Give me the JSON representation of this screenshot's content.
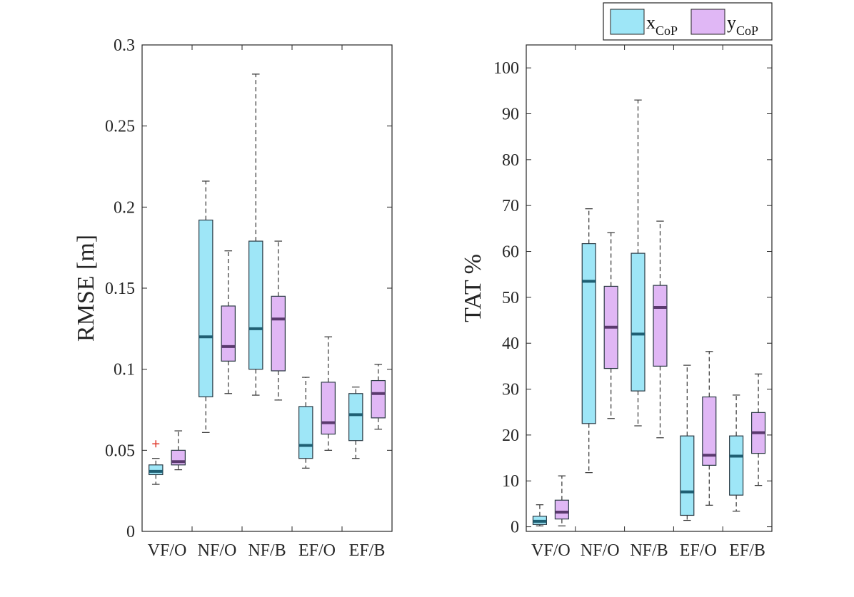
{
  "legend": {
    "entries": [
      {
        "main": "x",
        "sub": "CoP",
        "color": "#9ee6f7",
        "median_color": "#1f5f73"
      },
      {
        "main": "y",
        "sub": "CoP",
        "color": "#e0b7f5",
        "median_color": "#5a3a6e"
      }
    ],
    "placement": "top-right"
  },
  "chart_data": [
    {
      "type": "box",
      "ylabel": "RMSE [m]",
      "xlabel": "",
      "categories": [
        "VF/O",
        "NF/O",
        "NF/B",
        "EF/O",
        "EF/B"
      ],
      "ylim": [
        0,
        0.3
      ],
      "yticks": [
        0,
        0.05,
        0.1,
        0.15,
        0.2,
        0.25,
        0.3
      ],
      "ytick_labels": [
        "0",
        "0.05",
        "0.1",
        "0.15",
        "0.2",
        "0.25",
        "0.3"
      ],
      "series": [
        {
          "name": "xCoP",
          "boxes": [
            {
              "min": 0.029,
              "q1": 0.035,
              "median": 0.037,
              "q3": 0.041,
              "max": 0.045,
              "outliers": [
                0.054
              ]
            },
            {
              "min": 0.061,
              "q1": 0.083,
              "median": 0.12,
              "q3": 0.192,
              "max": 0.216,
              "outliers": []
            },
            {
              "min": 0.084,
              "q1": 0.1,
              "median": 0.125,
              "q3": 0.179,
              "max": 0.282,
              "outliers": []
            },
            {
              "min": 0.039,
              "q1": 0.045,
              "median": 0.053,
              "q3": 0.077,
              "max": 0.095,
              "outliers": []
            },
            {
              "min": 0.045,
              "q1": 0.056,
              "median": 0.072,
              "q3": 0.085,
              "max": 0.089,
              "outliers": []
            }
          ]
        },
        {
          "name": "yCoP",
          "boxes": [
            {
              "min": 0.038,
              "q1": 0.041,
              "median": 0.043,
              "q3": 0.05,
              "max": 0.062,
              "outliers": []
            },
            {
              "min": 0.085,
              "q1": 0.105,
              "median": 0.114,
              "q3": 0.139,
              "max": 0.173,
              "outliers": []
            },
            {
              "min": 0.081,
              "q1": 0.099,
              "median": 0.131,
              "q3": 0.145,
              "max": 0.179,
              "outliers": []
            },
            {
              "min": 0.05,
              "q1": 0.06,
              "median": 0.067,
              "q3": 0.092,
              "max": 0.12,
              "outliers": []
            },
            {
              "min": 0.063,
              "q1": 0.07,
              "median": 0.085,
              "q3": 0.093,
              "max": 0.103,
              "outliers": []
            }
          ]
        }
      ]
    },
    {
      "type": "box",
      "ylabel": "TAT %",
      "xlabel": "",
      "categories": [
        "VF/O",
        "NF/O",
        "NF/B",
        "EF/O",
        "EF/B"
      ],
      "ylim": [
        -1,
        105
      ],
      "yticks": [
        0,
        10,
        20,
        30,
        40,
        50,
        60,
        70,
        80,
        90,
        100
      ],
      "ytick_labels": [
        "0",
        "10",
        "20",
        "30",
        "40",
        "50",
        "60",
        "70",
        "80",
        "90",
        "100"
      ],
      "series": [
        {
          "name": "xCoP",
          "boxes": [
            {
              "min": 0.2,
              "q1": 0.5,
              "median": 1.2,
              "q3": 2.3,
              "max": 4.8,
              "outliers": []
            },
            {
              "min": 11.8,
              "q1": 22.5,
              "median": 53.5,
              "q3": 61.7,
              "max": 69.3,
              "outliers": []
            },
            {
              "min": 22.0,
              "q1": 29.6,
              "median": 42.0,
              "q3": 59.6,
              "max": 93.0,
              "outliers": []
            },
            {
              "min": 1.4,
              "q1": 2.5,
              "median": 7.6,
              "q3": 19.8,
              "max": 35.2,
              "outliers": []
            },
            {
              "min": 3.4,
              "q1": 6.9,
              "median": 15.4,
              "q3": 19.8,
              "max": 28.7,
              "outliers": []
            }
          ]
        },
        {
          "name": "yCoP",
          "boxes": [
            {
              "min": 0.2,
              "q1": 1.7,
              "median": 3.2,
              "q3": 5.8,
              "max": 11.1,
              "outliers": []
            },
            {
              "min": 23.6,
              "q1": 34.5,
              "median": 43.5,
              "q3": 52.4,
              "max": 64.1,
              "outliers": []
            },
            {
              "min": 19.4,
              "q1": 35.0,
              "median": 47.8,
              "q3": 52.6,
              "max": 66.6,
              "outliers": []
            },
            {
              "min": 4.7,
              "q1": 13.4,
              "median": 15.6,
              "q3": 28.3,
              "max": 38.2,
              "outliers": []
            },
            {
              "min": 9.0,
              "q1": 16.0,
              "median": 20.5,
              "q3": 24.9,
              "max": 33.3,
              "outliers": []
            }
          ]
        }
      ]
    }
  ]
}
